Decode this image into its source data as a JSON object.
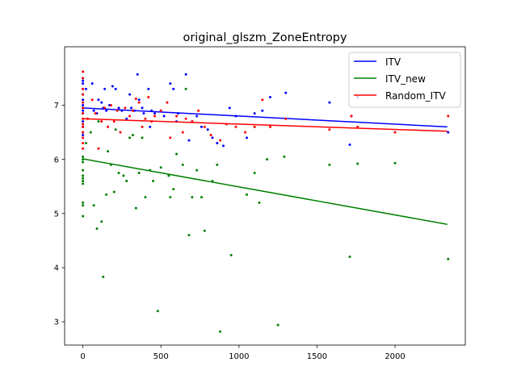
{
  "chart_data": {
    "type": "scatter",
    "title": "original_glszm_ZoneEntropy",
    "xlabel": "",
    "ylabel": "",
    "xlim": [
      -117,
      2450
    ],
    "ylim": [
      2.57,
      8.08
    ],
    "x_ticks": [
      0,
      500,
      1000,
      1500,
      2000
    ],
    "y_ticks": [
      3,
      4,
      5,
      6,
      7
    ],
    "x_tick_labels": [
      "0",
      "500",
      "1000",
      "1500",
      "2000"
    ],
    "y_tick_labels": [
      "3",
      "4",
      "5",
      "6",
      "7"
    ],
    "grid": false,
    "legend_position": "top-right",
    "series": [
      {
        "name": "ITV",
        "color": "#0000ff",
        "fit_line": [
          [
            0,
            6.95
          ],
          [
            2335,
            6.6
          ]
        ],
        "points": [
          [
            0,
            7.5
          ],
          [
            0,
            7.45
          ],
          [
            0,
            7.4
          ],
          [
            0,
            7.3
          ],
          [
            0,
            7.2
          ],
          [
            0,
            7.1
          ],
          [
            0,
            7.0
          ],
          [
            0,
            6.95
          ],
          [
            0,
            6.9
          ],
          [
            0,
            6.85
          ],
          [
            0,
            6.7
          ],
          [
            0,
            6.6
          ],
          [
            0,
            6.5
          ],
          [
            0,
            6.45
          ],
          [
            20,
            7.3
          ],
          [
            60,
            7.4
          ],
          [
            70,
            6.9
          ],
          [
            90,
            6.85
          ],
          [
            100,
            7.1
          ],
          [
            120,
            7.05
          ],
          [
            130,
            6.95
          ],
          [
            140,
            7.3
          ],
          [
            150,
            6.9
          ],
          [
            170,
            7.0
          ],
          [
            190,
            7.35
          ],
          [
            210,
            7.3
          ],
          [
            230,
            6.95
          ],
          [
            250,
            6.9
          ],
          [
            280,
            6.75
          ],
          [
            300,
            7.2
          ],
          [
            310,
            6.95
          ],
          [
            330,
            6.9
          ],
          [
            350,
            7.57
          ],
          [
            360,
            7.1
          ],
          [
            380,
            6.95
          ],
          [
            390,
            6.85
          ],
          [
            420,
            7.3
          ],
          [
            430,
            6.6
          ],
          [
            440,
            6.9
          ],
          [
            460,
            6.85
          ],
          [
            500,
            6.9
          ],
          [
            520,
            6.8
          ],
          [
            560,
            7.4
          ],
          [
            580,
            7.3
          ],
          [
            600,
            6.7
          ],
          [
            610,
            6.85
          ],
          [
            660,
            7.57
          ],
          [
            680,
            6.35
          ],
          [
            700,
            6.7
          ],
          [
            730,
            6.8
          ],
          [
            760,
            6.6
          ],
          [
            800,
            6.55
          ],
          [
            830,
            6.4
          ],
          [
            860,
            6.3
          ],
          [
            900,
            6.25
          ],
          [
            940,
            6.95
          ],
          [
            980,
            6.8
          ],
          [
            1050,
            6.4
          ],
          [
            1100,
            6.85
          ],
          [
            1150,
            6.9
          ],
          [
            1200,
            7.15
          ],
          [
            1300,
            7.23
          ],
          [
            1580,
            7.05
          ],
          [
            1710,
            6.27
          ],
          [
            1720,
            6.8
          ],
          [
            1760,
            7.15
          ],
          [
            2340,
            6.5
          ]
        ]
      },
      {
        "name": "ITV_new",
        "color": "#008000",
        "fit_line": [
          [
            0,
            6.01
          ],
          [
            2335,
            4.8
          ]
        ],
        "points": [
          [
            0,
            6.05
          ],
          [
            0,
            6.0
          ],
          [
            0,
            5.95
          ],
          [
            0,
            5.8
          ],
          [
            0,
            5.7
          ],
          [
            0,
            5.65
          ],
          [
            0,
            5.6
          ],
          [
            0,
            5.55
          ],
          [
            0,
            5.2
          ],
          [
            0,
            5.15
          ],
          [
            0,
            4.95
          ],
          [
            20,
            6.3
          ],
          [
            50,
            6.5
          ],
          [
            70,
            5.15
          ],
          [
            90,
            4.72
          ],
          [
            100,
            6.7
          ],
          [
            120,
            4.85
          ],
          [
            130,
            3.83
          ],
          [
            150,
            5.35
          ],
          [
            160,
            6.15
          ],
          [
            180,
            5.9
          ],
          [
            200,
            5.4
          ],
          [
            210,
            6.55
          ],
          [
            230,
            5.75
          ],
          [
            260,
            5.7
          ],
          [
            280,
            5.6
          ],
          [
            300,
            6.4
          ],
          [
            320,
            6.45
          ],
          [
            340,
            5.1
          ],
          [
            360,
            5.75
          ],
          [
            380,
            6.4
          ],
          [
            400,
            5.3
          ],
          [
            430,
            5.8
          ],
          [
            450,
            5.6
          ],
          [
            480,
            3.2
          ],
          [
            500,
            5.85
          ],
          [
            550,
            5.7
          ],
          [
            560,
            5.3
          ],
          [
            580,
            5.45
          ],
          [
            600,
            6.1
          ],
          [
            640,
            5.9
          ],
          [
            660,
            7.3
          ],
          [
            680,
            4.6
          ],
          [
            700,
            5.3
          ],
          [
            730,
            5.8
          ],
          [
            760,
            5.3
          ],
          [
            780,
            4.68
          ],
          [
            830,
            5.6
          ],
          [
            860,
            5.9
          ],
          [
            880,
            2.82
          ],
          [
            950,
            4.23
          ],
          [
            1050,
            5.35
          ],
          [
            1100,
            5.75
          ],
          [
            1130,
            5.2
          ],
          [
            1180,
            6.0
          ],
          [
            1250,
            2.94
          ],
          [
            1290,
            6.05
          ],
          [
            1580,
            5.9
          ],
          [
            1710,
            4.2
          ],
          [
            1760,
            5.92
          ],
          [
            2000,
            5.93
          ],
          [
            2340,
            4.16
          ]
        ]
      },
      {
        "name": "Random_ITV",
        "color": "#ff0000",
        "fit_line": [
          [
            0,
            6.75
          ],
          [
            2335,
            6.52
          ]
        ],
        "points": [
          [
            0,
            7.62
          ],
          [
            0,
            7.5
          ],
          [
            0,
            7.3
          ],
          [
            0,
            7.2
          ],
          [
            0,
            7.05
          ],
          [
            0,
            6.95
          ],
          [
            0,
            6.85
          ],
          [
            0,
            6.75
          ],
          [
            0,
            6.65
          ],
          [
            0,
            6.6
          ],
          [
            0,
            6.5
          ],
          [
            0,
            6.4
          ],
          [
            0,
            6.3
          ],
          [
            0,
            6.2
          ],
          [
            30,
            6.75
          ],
          [
            60,
            7.1
          ],
          [
            80,
            6.85
          ],
          [
            100,
            6.2
          ],
          [
            120,
            6.7
          ],
          [
            140,
            6.95
          ],
          [
            160,
            6.6
          ],
          [
            180,
            7.0
          ],
          [
            200,
            6.7
          ],
          [
            220,
            6.9
          ],
          [
            240,
            6.5
          ],
          [
            270,
            6.95
          ],
          [
            300,
            6.8
          ],
          [
            320,
            6.9
          ],
          [
            340,
            7.12
          ],
          [
            360,
            7.05
          ],
          [
            380,
            6.6
          ],
          [
            400,
            6.75
          ],
          [
            420,
            7.15
          ],
          [
            440,
            6.7
          ],
          [
            460,
            6.8
          ],
          [
            500,
            6.9
          ],
          [
            540,
            7.05
          ],
          [
            560,
            6.4
          ],
          [
            600,
            6.8
          ],
          [
            640,
            6.5
          ],
          [
            660,
            6.75
          ],
          [
            700,
            6.7
          ],
          [
            740,
            6.9
          ],
          [
            780,
            6.6
          ],
          [
            820,
            6.45
          ],
          [
            880,
            6.35
          ],
          [
            920,
            6.65
          ],
          [
            980,
            6.6
          ],
          [
            1040,
            6.5
          ],
          [
            1100,
            6.6
          ],
          [
            1150,
            7.1
          ],
          [
            1200,
            6.6
          ],
          [
            1300,
            6.75
          ],
          [
            1580,
            6.55
          ],
          [
            1720,
            6.8
          ],
          [
            1760,
            6.6
          ],
          [
            2000,
            6.5
          ],
          [
            2340,
            6.8
          ]
        ]
      }
    ]
  }
}
